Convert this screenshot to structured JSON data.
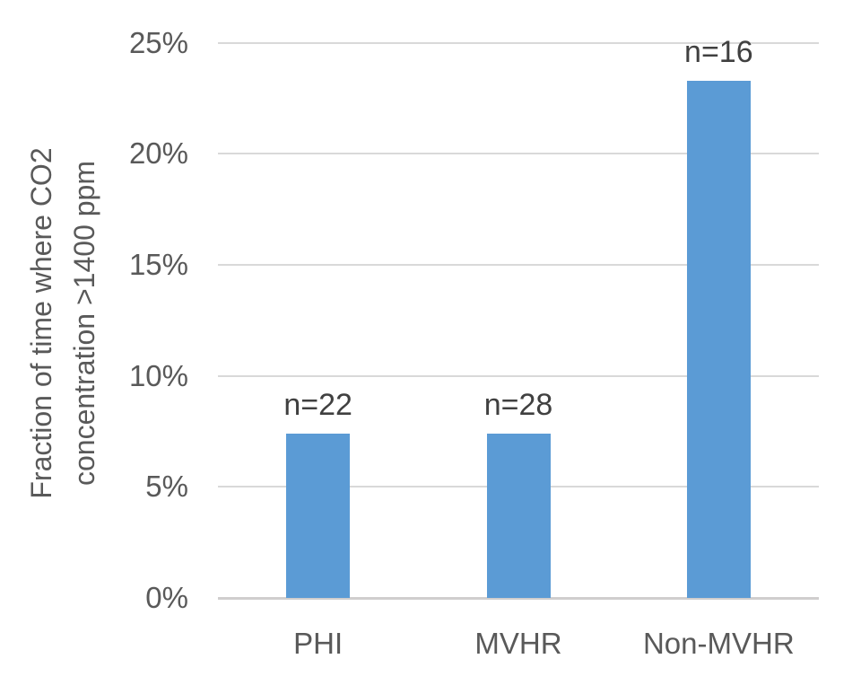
{
  "chart_data": {
    "type": "bar",
    "title": "",
    "categories": [
      "PHI",
      "MVHR",
      "Non-MVHR"
    ],
    "values": [
      7.4,
      7.4,
      23.3
    ],
    "bar_labels": [
      "n=22",
      "n=28",
      "n=16"
    ],
    "series_unit": "percent",
    "xlabel": "",
    "ylabel": "Fraction of time where CO2\nconcentration >1400 ppm",
    "ylim": [
      0,
      25
    ],
    "yticks": [
      0,
      5,
      10,
      15,
      20,
      25
    ],
    "ytick_labels": [
      "0%",
      "5%",
      "10%",
      "15%",
      "20%",
      "25%"
    ],
    "grid": "horizontal",
    "legend": "none",
    "colors": {
      "bar": "#5B9BD5",
      "gridline": "#D9D9D9",
      "axis_line": "#D0CECE",
      "tick_text": "#595959",
      "bar_label_text": "#404040",
      "background": "#FFFFFF"
    }
  }
}
